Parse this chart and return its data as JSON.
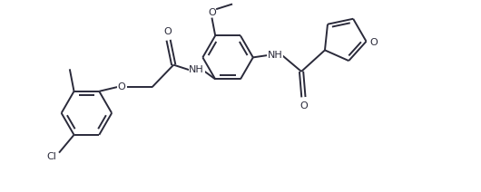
{
  "bg_color": "#ffffff",
  "line_color": "#2a2a3a",
  "lw": 1.4,
  "fs": 8.0,
  "figsize": [
    5.3,
    2.12
  ],
  "dpi": 100,
  "xlim": [
    -0.3,
    10.0
  ],
  "ylim": [
    -2.5,
    2.0
  ]
}
